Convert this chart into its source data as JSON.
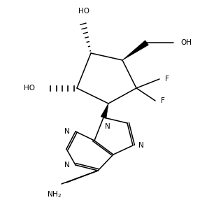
{
  "figsize": [
    2.86,
    2.96
  ],
  "dpi": 100,
  "background": "#ffffff",
  "line_color": "#000000",
  "lw": 1.1,
  "fs": 7.0,
  "xlim": [
    0,
    286
  ],
  "ylim": [
    0,
    296
  ]
}
